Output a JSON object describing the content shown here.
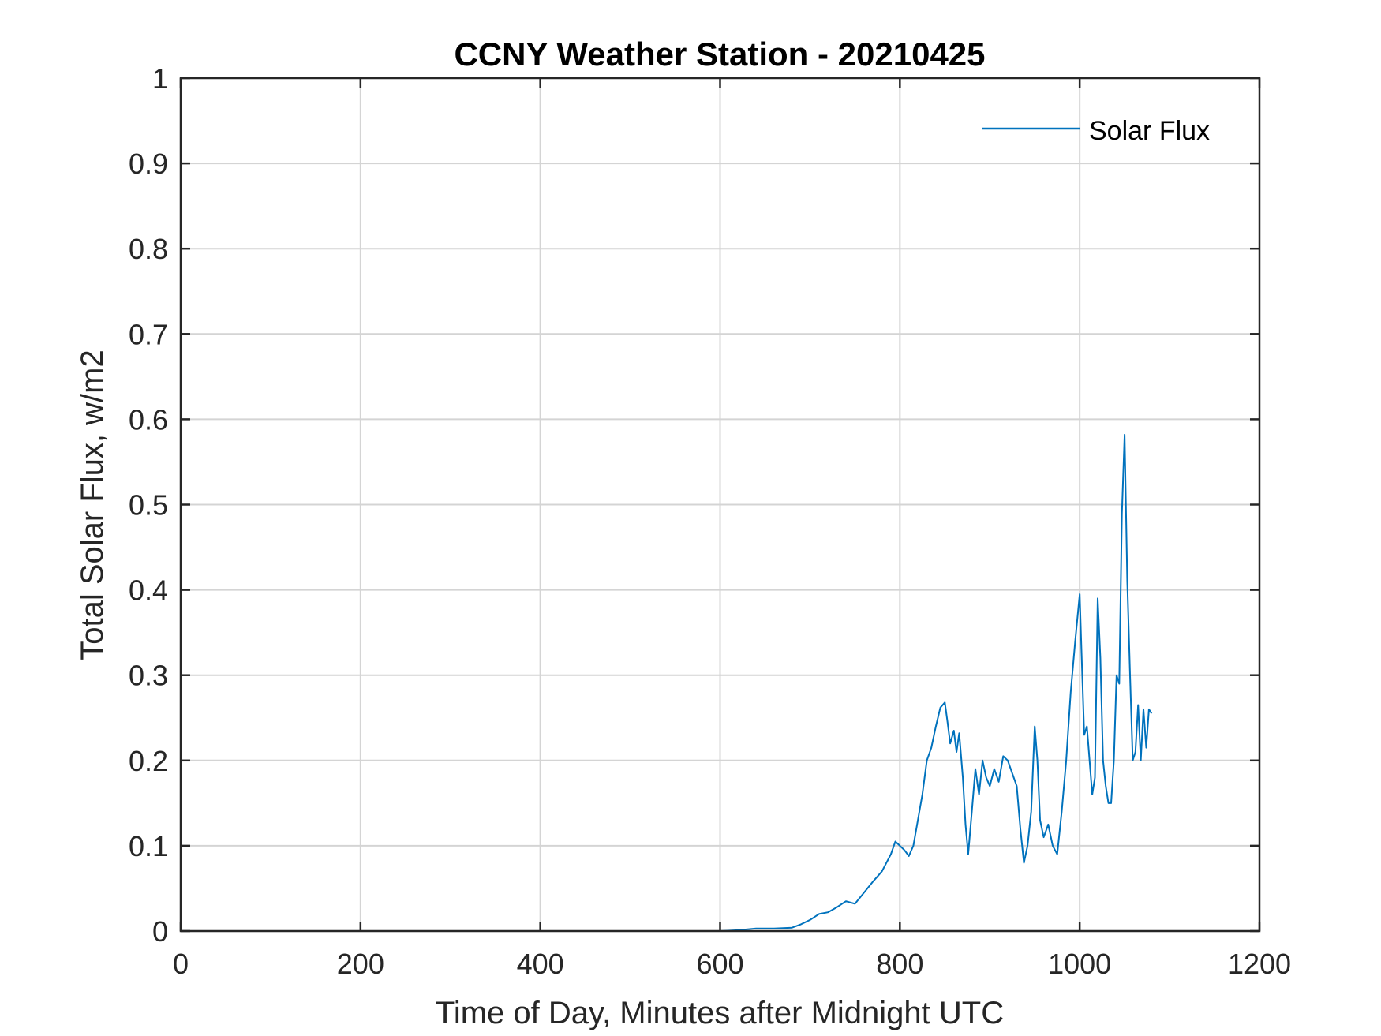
{
  "chart_data": {
    "type": "line",
    "title": "CCNY Weather Station - 20210425",
    "xlabel": "Time of Day, Minutes after Midnight UTC",
    "ylabel": "Total Solar Flux, w/m2",
    "xlim": [
      0,
      1200
    ],
    "ylim": [
      0,
      1
    ],
    "xticks": [
      0,
      200,
      400,
      600,
      800,
      1000,
      1200
    ],
    "xtick_labels": [
      "0",
      "200",
      "400",
      "600",
      "800",
      "1000",
      "1200"
    ],
    "yticks": [
      0,
      0.1,
      0.2,
      0.3,
      0.4,
      0.5,
      0.6,
      0.7,
      0.8,
      0.9,
      1
    ],
    "ytick_labels": [
      "0",
      "0.1",
      "0.2",
      "0.3",
      "0.4",
      "0.5",
      "0.6",
      "0.7",
      "0.8",
      "0.9",
      "1"
    ],
    "grid": true,
    "legend_position": "top-right",
    "series": [
      {
        "name": "Solar Flux",
        "color": "#0072BD",
        "x": [
          0,
          100,
          200,
          300,
          400,
          500,
          600,
          620,
          640,
          660,
          680,
          690,
          700,
          710,
          720,
          730,
          740,
          750,
          760,
          770,
          780,
          790,
          795,
          800,
          805,
          810,
          815,
          820,
          825,
          830,
          835,
          840,
          845,
          850,
          853,
          856,
          860,
          863,
          866,
          870,
          873,
          876,
          880,
          884,
          888,
          892,
          896,
          900,
          905,
          910,
          915,
          920,
          925,
          930,
          934,
          938,
          942,
          946,
          950,
          953,
          956,
          960,
          965,
          970,
          975,
          980,
          985,
          990,
          995,
          1000,
          1002,
          1005,
          1008,
          1011,
          1014,
          1017,
          1020,
          1023,
          1026,
          1029,
          1032,
          1035,
          1038,
          1041,
          1044,
          1047,
          1050,
          1053,
          1056,
          1059,
          1062,
          1065,
          1068,
          1071,
          1074,
          1077,
          1080
        ],
        "values": [
          0,
          0,
          0,
          0,
          0,
          0,
          0,
          0.001,
          0.003,
          0.003,
          0.004,
          0.008,
          0.013,
          0.02,
          0.022,
          0.028,
          0.035,
          0.032,
          0.045,
          0.058,
          0.07,
          0.09,
          0.105,
          0.1,
          0.095,
          0.088,
          0.1,
          0.13,
          0.16,
          0.2,
          0.215,
          0.24,
          0.262,
          0.268,
          0.245,
          0.22,
          0.235,
          0.21,
          0.232,
          0.18,
          0.125,
          0.09,
          0.14,
          0.19,
          0.16,
          0.2,
          0.18,
          0.17,
          0.19,
          0.175,
          0.205,
          0.2,
          0.185,
          0.17,
          0.12,
          0.08,
          0.1,
          0.14,
          0.24,
          0.2,
          0.13,
          0.11,
          0.125,
          0.1,
          0.09,
          0.14,
          0.2,
          0.28,
          0.34,
          0.395,
          0.33,
          0.23,
          0.24,
          0.2,
          0.16,
          0.18,
          0.39,
          0.32,
          0.2,
          0.17,
          0.15,
          0.15,
          0.2,
          0.3,
          0.29,
          0.49,
          0.582,
          0.41,
          0.3,
          0.2,
          0.21,
          0.265,
          0.2,
          0.26,
          0.215,
          0.26,
          0.255
        ]
      }
    ]
  }
}
